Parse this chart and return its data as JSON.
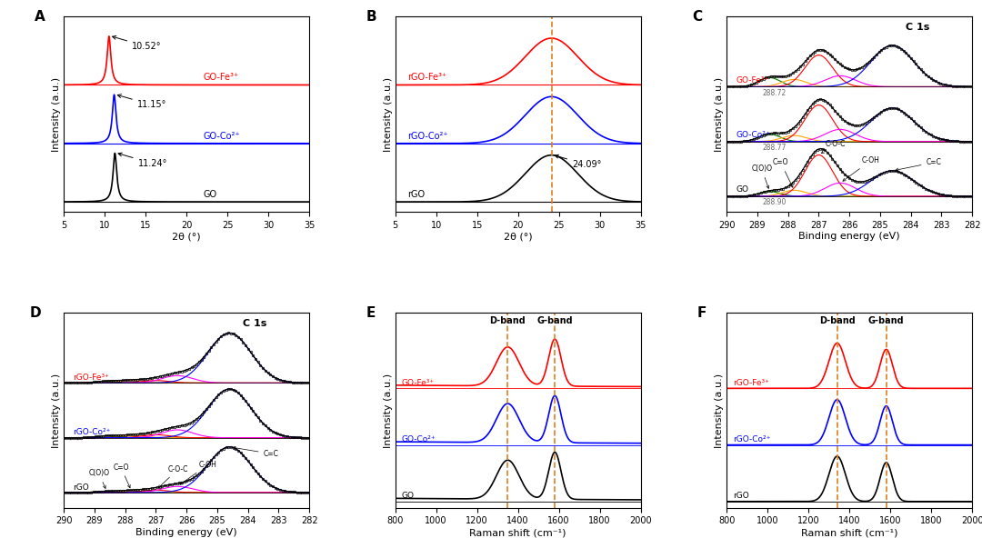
{
  "panel_A": {
    "xlabel": "2θ (°)",
    "ylabel": "Intensity (a.u.)",
    "xlim": [
      5,
      35
    ],
    "peaks": [
      10.52,
      11.15,
      11.24
    ],
    "curve_colors": [
      "red",
      "blue",
      "black"
    ],
    "curve_labels": [
      "GO-Fe³⁺",
      "GO-Co²⁺",
      "GO"
    ],
    "label_colors": [
      "red",
      "blue",
      "black"
    ],
    "offsets": [
      1.8,
      0.9,
      0.0
    ]
  },
  "panel_B": {
    "xlabel": "2θ (°)",
    "ylabel": "Intensity (a.u.)",
    "xlim": [
      5,
      35
    ],
    "peak": 24.09,
    "curve_colors": [
      "red",
      "blue",
      "black"
    ],
    "curve_labels": [
      "rGO-Fe³⁺",
      "rGO-Co²⁺",
      "rGO"
    ],
    "label_colors": [
      "red",
      "blue",
      "black"
    ],
    "offsets": [
      1.8,
      0.9,
      0.0
    ],
    "dashed_line_color": "#E08020"
  },
  "panel_C": {
    "title": "C 1s",
    "xlabel": "Binding energy (eV)",
    "ylabel": "Intensity (a.u.)",
    "curve_labels": [
      "GO-Fe³⁺",
      "GO-Co²⁺",
      "GO"
    ],
    "label_colors": [
      "red",
      "blue",
      "black"
    ],
    "peak_labels_values": [
      "288.72",
      "288.77",
      "288.90"
    ],
    "component_colors": [
      "green",
      "orange",
      "red",
      "magenta",
      "blue"
    ]
  },
  "panel_D": {
    "title": "C 1s",
    "xlabel": "Binding energy (eV)",
    "ylabel": "Intensity (a.u.)",
    "curve_labels": [
      "rGO-Fe³⁺",
      "rGO-Co²⁺",
      "rGO"
    ],
    "label_colors": [
      "red",
      "blue",
      "black"
    ],
    "component_colors": [
      "green",
      "orange",
      "red",
      "magenta",
      "blue"
    ]
  },
  "panel_E": {
    "xlabel": "Raman shift (cm⁻¹)",
    "ylabel": "Intensity (a.u.)",
    "d_band": 1350,
    "g_band": 1580,
    "curve_colors": [
      "red",
      "blue",
      "black"
    ],
    "curve_labels": [
      "GO-Fe³⁺",
      "GO-Co²⁺",
      "GO"
    ],
    "label_colors": [
      "red",
      "blue",
      "black"
    ],
    "offsets": [
      1.8,
      0.9,
      0.0
    ],
    "dashed_line_color": "#E08020"
  },
  "panel_F": {
    "xlabel": "Raman shift (cm⁻¹)",
    "ylabel": "Intensity (a.u.)",
    "d_band": 1340,
    "g_band": 1580,
    "curve_colors": [
      "red",
      "blue",
      "black"
    ],
    "curve_labels": [
      "rGO-Fe³⁺",
      "rGO-Co²⁺",
      "rGO"
    ],
    "label_colors": [
      "red",
      "blue",
      "black"
    ],
    "offsets": [
      1.8,
      0.9,
      0.0
    ],
    "dashed_line_color": "#E08020"
  }
}
